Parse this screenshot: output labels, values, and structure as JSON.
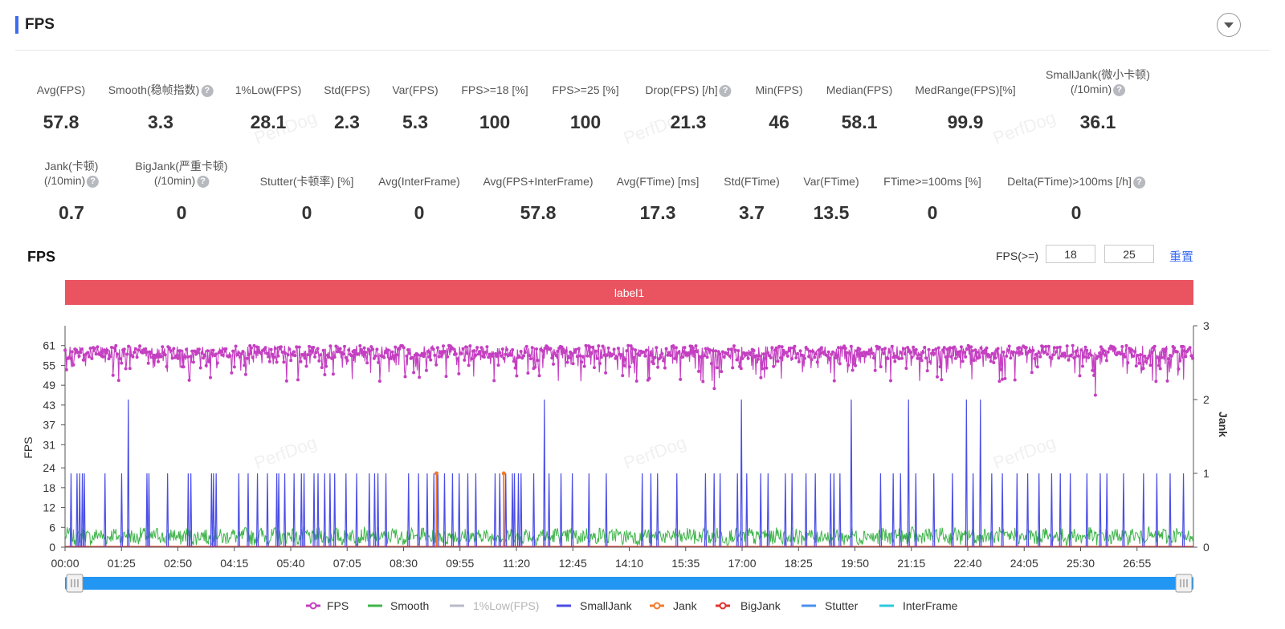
{
  "header": {
    "title": "FPS"
  },
  "metrics_row1": [
    {
      "label": "Avg(FPS)",
      "value": "57.8",
      "help": false
    },
    {
      "label": "Smooth(稳帧指数)",
      "value": "3.3",
      "help": true
    },
    {
      "label": "1%Low(FPS)",
      "value": "28.1",
      "help": false
    },
    {
      "label": "Std(FPS)",
      "value": "2.3",
      "help": false
    },
    {
      "label": "Var(FPS)",
      "value": "5.3",
      "help": false
    },
    {
      "label": "FPS>=18 [%]",
      "value": "100",
      "help": false
    },
    {
      "label": "FPS>=25 [%]",
      "value": "100",
      "help": false
    },
    {
      "label": "Drop(FPS) [/h]",
      "value": "21.3",
      "help": true
    },
    {
      "label": "Min(FPS)",
      "value": "46",
      "help": false
    },
    {
      "label": "Median(FPS)",
      "value": "58.1",
      "help": false
    },
    {
      "label": "MedRange(FPS)[%]",
      "value": "99.9",
      "help": false
    },
    {
      "label": "SmallJank(微小卡顿)",
      "label2": "(/10min)",
      "value": "36.1",
      "help": true
    }
  ],
  "metrics_row2": [
    {
      "label": "Jank(卡顿)",
      "label2": "(/10min)",
      "value": "0.7",
      "help": true
    },
    {
      "label": "BigJank(严重卡顿)",
      "label2": "(/10min)",
      "value": "0",
      "help": true
    },
    {
      "label": "Stutter(卡顿率) [%]",
      "value": "0",
      "help": false
    },
    {
      "label": "Avg(InterFrame)",
      "value": "0",
      "help": false
    },
    {
      "label": "Avg(FPS+InterFrame)",
      "value": "57.8",
      "help": false
    },
    {
      "label": "Avg(FTime) [ms]",
      "value": "17.3",
      "help": false
    },
    {
      "label": "Std(FTime)",
      "value": "3.7",
      "help": false
    },
    {
      "label": "Var(FTime)",
      "value": "13.5",
      "help": false
    },
    {
      "label": "FTime>=100ms [%]",
      "value": "0",
      "help": false
    },
    {
      "label": "Delta(FTime)>100ms [/h]",
      "value": "0",
      "help": true
    }
  ],
  "chart_section": {
    "title": "FPS",
    "threshold_label": "FPS(>=)",
    "threshold_low": "18",
    "threshold_high": "25",
    "reset_label": "重置",
    "band_label": "label1",
    "watermark": "PerfDog"
  },
  "chart_data": {
    "type": "line",
    "ylabel": "FPS",
    "ylabel_right": "Jank",
    "y_ticks": [
      0,
      6,
      12,
      18,
      24,
      31,
      37,
      43,
      49,
      55,
      61
    ],
    "ylim": [
      0,
      67
    ],
    "y2_ticks": [
      0,
      1,
      2,
      3
    ],
    "y2lim": [
      0,
      3
    ],
    "x_ticks": [
      "00:00",
      "01:25",
      "02:50",
      "04:15",
      "05:40",
      "07:05",
      "08:30",
      "09:55",
      "11:20",
      "12:45",
      "14:10",
      "15:35",
      "17:00",
      "18:25",
      "19:50",
      "21:15",
      "22:40",
      "24:05",
      "25:30",
      "26:55"
    ],
    "duration_seconds": 1695,
    "series": [
      {
        "name": "FPS",
        "color": "#c43fc1",
        "axis": "left",
        "summary": {
          "avg": 57.8,
          "min": 46,
          "max": 61,
          "median": 58.1
        }
      },
      {
        "name": "Smooth",
        "color": "#3fb54a",
        "axis": "left",
        "summary": {
          "avg": 3.3
        }
      },
      {
        "name": "1%Low(FPS)",
        "color": "#b8bcc8",
        "axis": "left",
        "hidden": true
      },
      {
        "name": "SmallJank",
        "color": "#4a4de6",
        "axis": "right",
        "spikes_at_2_seconds": [
          95,
          720,
          1016,
          1181,
          1267,
          1354,
          1375
        ],
        "spikes_at_1_seconds": [
          9,
          18,
          22,
          26,
          29,
          60,
          85,
          123,
          126,
          154,
          185,
          189,
          220,
          223,
          227,
          261,
          275,
          289,
          304,
          318,
          321,
          330,
          344,
          355,
          359,
          374,
          380,
          390,
          398,
          405,
          422,
          438,
          457,
          465,
          470,
          482,
          516,
          531,
          544,
          554,
          560,
          570,
          582,
          592,
          605,
          617,
          646,
          653,
          662,
          672,
          675,
          681,
          685,
          704,
          727,
          745,
          762,
          787,
          813,
          867,
          880,
          890,
          919,
          962,
          975,
          984,
          1010,
          1024,
          1045,
          1056,
          1082,
          1092,
          1113,
          1127,
          1150,
          1155,
          1164,
          1225,
          1244,
          1255,
          1278,
          1305,
          1333,
          1364,
          1392,
          1408,
          1430,
          1446,
          1463,
          1482,
          1495,
          1510,
          1535,
          1555,
          1565,
          1590,
          1620,
          1640,
          1660,
          1680
        ]
      },
      {
        "name": "Jank",
        "color": "#f07b2e",
        "axis": "right",
        "points_seconds": [
          558,
          659
        ],
        "value": 1
      },
      {
        "name": "BigJank",
        "color": "#e0332e",
        "axis": "right",
        "value": 0
      },
      {
        "name": "Stutter",
        "color": "#4a90f0",
        "axis": "left",
        "value": 0
      },
      {
        "name": "InterFrame",
        "color": "#2ec9e0",
        "axis": "left",
        "value": 0
      }
    ],
    "legend_position": "bottom",
    "annotation_band": "label1"
  }
}
